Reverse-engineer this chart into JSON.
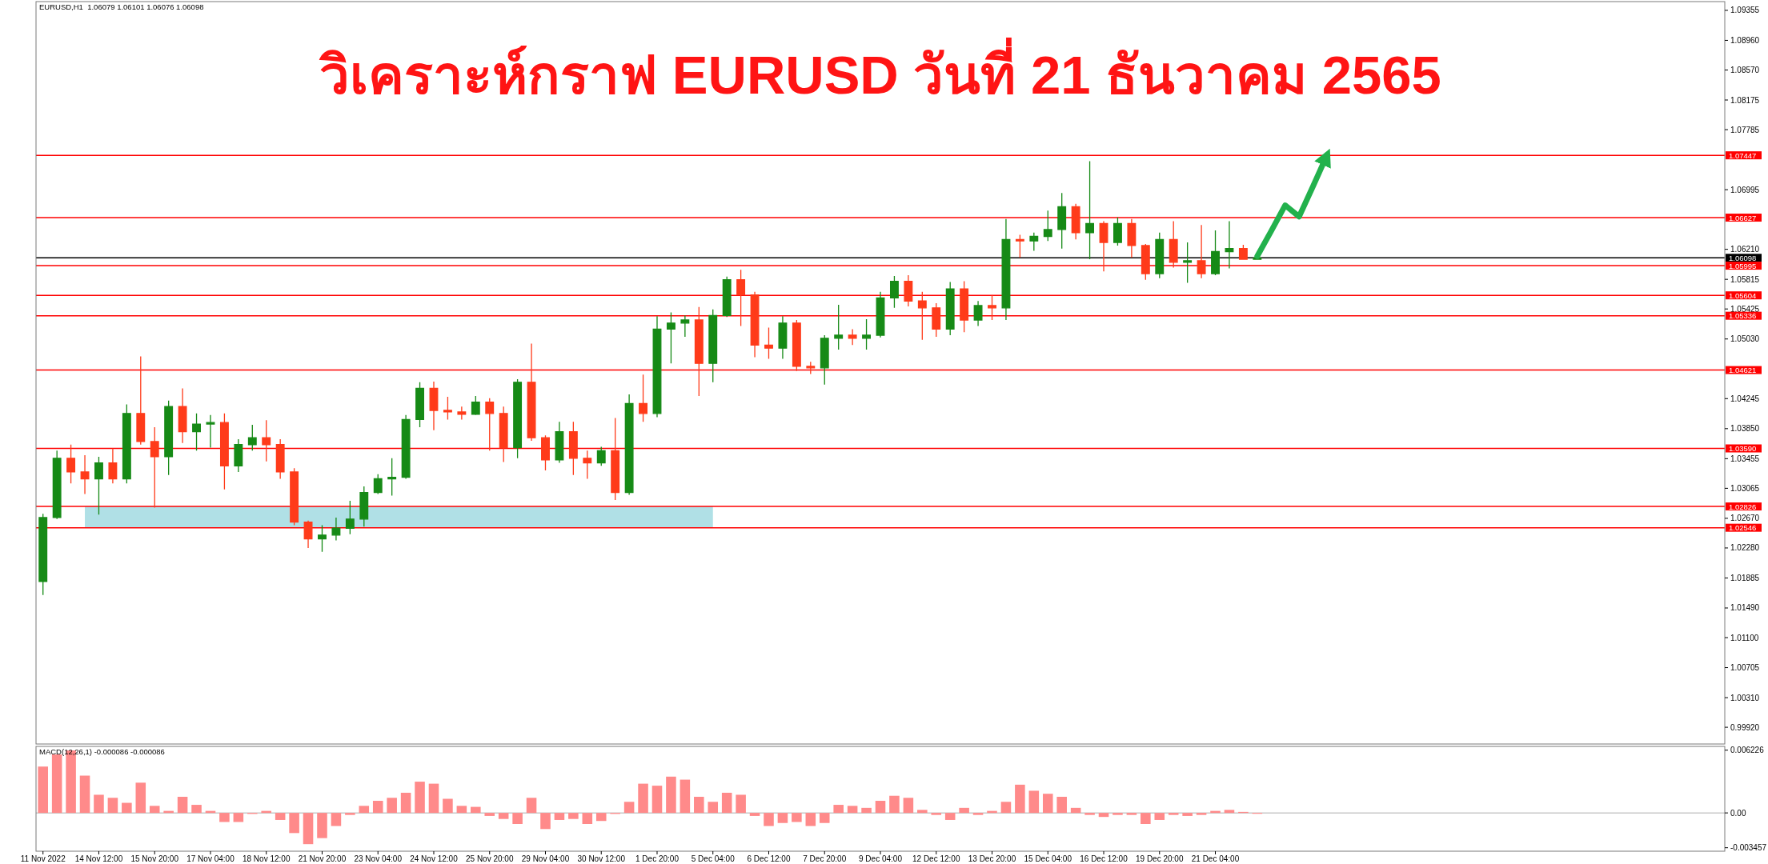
{
  "chart_data": [
    {
      "type": "candlestick",
      "title": "วิเคราะห์กราฟ EURUSD วันที่ 21 ธันวาคม 2565",
      "annotations": [
        "EURUSD,H1  1.06079 1.06101 1.06076 1.06098"
      ],
      "categories": [
        null,
        null,
        null,
        null,
        null,
        null,
        null,
        null,
        null,
        null,
        null,
        null,
        null,
        null,
        null,
        null,
        null,
        null,
        null,
        null,
        null,
        null,
        null,
        null,
        null,
        null,
        null,
        null,
        null,
        null,
        null,
        null,
        null,
        null,
        null,
        null,
        null,
        null,
        null,
        null,
        null,
        null,
        null,
        null,
        null,
        null,
        null,
        null,
        null,
        null,
        null,
        null,
        null,
        null,
        null,
        null,
        null,
        null,
        null,
        null,
        null,
        null,
        null,
        null,
        null,
        null,
        null,
        null,
        null,
        null,
        null,
        null,
        null,
        null,
        null,
        null,
        null,
        null,
        null,
        null,
        null,
        null,
        null,
        null,
        null,
        null,
        null,
        null,
        null,
        null,
        null,
        null,
        null,
        null,
        null,
        null,
        null,
        null,
        null,
        null,
        null,
        null,
        null,
        null,
        null,
        null,
        null,
        null,
        null,
        null,
        null,
        null,
        null,
        null,
        null,
        null,
        null,
        null,
        null,
        null,
        null
      ],
      "ohlc": [
        [
          1.0184,
          1.0273,
          1.0166,
          1.0268
        ],
        [
          1.0268,
          1.0356,
          1.0266,
          1.0346
        ],
        [
          1.0346,
          1.0364,
          1.0313,
          1.0328
        ],
        [
          1.0328,
          1.035,
          1.0299,
          1.0319
        ],
        [
          1.0319,
          1.0348,
          1.0272,
          1.034
        ],
        [
          1.034,
          1.0359,
          1.0313,
          1.0319
        ],
        [
          1.0319,
          1.0417,
          1.0313,
          1.0405
        ],
        [
          1.0405,
          1.048,
          1.0364,
          1.0368
        ],
        [
          1.0368,
          1.0387,
          1.0281,
          1.0348
        ],
        [
          1.0348,
          1.0422,
          1.0324,
          1.0414
        ],
        [
          1.0414,
          1.0438,
          1.0366,
          1.0381
        ],
        [
          1.0381,
          1.0405,
          1.0356,
          1.0391
        ],
        [
          1.0391,
          1.0403,
          1.036,
          1.0393
        ],
        [
          1.0393,
          1.0405,
          1.0305,
          1.0336
        ],
        [
          1.0336,
          1.0371,
          1.0328,
          1.0364
        ],
        [
          1.0364,
          1.039,
          1.0356,
          1.0373
        ],
        [
          1.0373,
          1.0396,
          1.0342,
          1.0364
        ],
        [
          1.0364,
          1.0371,
          1.0319,
          1.0328
        ],
        [
          1.0328,
          1.0333,
          1.0258,
          1.0262
        ],
        [
          1.0262,
          1.0264,
          1.0228,
          1.024
        ],
        [
          1.024,
          1.0258,
          1.0223,
          1.0245
        ],
        [
          1.0245,
          1.0268,
          1.0238,
          1.0254
        ],
        [
          1.0254,
          1.029,
          1.0246,
          1.0266
        ],
        [
          1.0266,
          1.0309,
          1.0256,
          1.0301
        ],
        [
          1.0301,
          1.0325,
          1.0299,
          1.0319
        ],
        [
          1.0319,
          1.0346,
          1.0297,
          1.0321
        ],
        [
          1.0321,
          1.0403,
          1.0319,
          1.0397
        ],
        [
          1.0397,
          1.0446,
          1.0387,
          1.0438
        ],
        [
          1.0438,
          1.0447,
          1.0383,
          1.0409
        ],
        [
          1.0409,
          1.0427,
          1.0397,
          1.0407
        ],
        [
          1.0407,
          1.0414,
          1.0397,
          1.0404
        ],
        [
          1.0404,
          1.0428,
          1.0403,
          1.042
        ],
        [
          1.042,
          1.0425,
          1.0356,
          1.0405
        ],
        [
          1.0405,
          1.0414,
          1.0341,
          1.036
        ],
        [
          1.036,
          1.045,
          1.0346,
          1.0446
        ],
        [
          1.0446,
          1.0497,
          1.0369,
          1.0373
        ],
        [
          1.0373,
          1.0376,
          1.033,
          1.0344
        ],
        [
          1.0344,
          1.0394,
          1.034,
          1.0381
        ],
        [
          1.0381,
          1.0394,
          1.0324,
          1.0346
        ],
        [
          1.0346,
          1.0356,
          1.0319,
          1.034
        ],
        [
          1.034,
          1.0361,
          1.0336,
          1.0356
        ],
        [
          1.0356,
          1.0399,
          1.0291,
          1.0301
        ],
        [
          1.0301,
          1.043,
          1.0298,
          1.0418
        ],
        [
          1.0418,
          1.0456,
          1.0394,
          1.0405
        ],
        [
          1.0405,
          1.0533,
          1.04,
          1.0516
        ],
        [
          1.0516,
          1.0538,
          1.0471,
          1.0524
        ],
        [
          1.0524,
          1.0534,
          1.0506,
          1.0528
        ],
        [
          1.0528,
          1.0545,
          1.0428,
          1.0471
        ],
        [
          1.0471,
          1.0542,
          1.0446,
          1.0534
        ],
        [
          1.0534,
          1.0585,
          1.0532,
          1.0581
        ],
        [
          1.0581,
          1.0594,
          1.052,
          1.0561
        ],
        [
          1.0561,
          1.0565,
          1.0479,
          1.0495
        ],
        [
          1.0495,
          1.0518,
          1.0477,
          1.0491
        ],
        [
          1.0491,
          1.0533,
          1.0477,
          1.0524
        ],
        [
          1.0524,
          1.0528,
          1.0461,
          1.0467
        ],
        [
          1.0467,
          1.0473,
          1.0457,
          1.0465
        ],
        [
          1.0465,
          1.0508,
          1.0443,
          1.0504
        ],
        [
          1.0504,
          1.0548,
          1.0489,
          1.0508
        ],
        [
          1.0508,
          1.0516,
          1.0495,
          1.0504
        ],
        [
          1.0504,
          1.0529,
          1.0489,
          1.0508
        ],
        [
          1.0508,
          1.0565,
          1.0505,
          1.0557
        ],
        [
          1.0557,
          1.0586,
          1.0544,
          1.0579
        ],
        [
          1.0579,
          1.0587,
          1.0546,
          1.0553
        ],
        [
          1.0553,
          1.0565,
          1.0502,
          1.0544
        ],
        [
          1.0544,
          1.055,
          1.0506,
          1.0516
        ],
        [
          1.0516,
          1.0578,
          1.0508,
          1.0569
        ],
        [
          1.0569,
          1.0579,
          1.0512,
          1.0528
        ],
        [
          1.0528,
          1.0553,
          1.052,
          1.0547
        ],
        [
          1.0547,
          1.0561,
          1.0528,
          1.0544
        ],
        [
          1.0544,
          1.0661,
          1.0528,
          1.0634
        ],
        [
          1.0634,
          1.064,
          1.061,
          1.0632
        ],
        [
          1.0632,
          1.0643,
          1.0619,
          1.0638
        ],
        [
          1.0638,
          1.0672,
          1.0632,
          1.0647
        ],
        [
          1.0647,
          1.0695,
          1.0622,
          1.0677
        ],
        [
          1.0677,
          1.0681,
          1.0634,
          1.0643
        ],
        [
          1.0643,
          1.0737,
          1.0608,
          1.0655
        ],
        [
          1.0655,
          1.0658,
          1.0592,
          1.063
        ],
        [
          1.063,
          1.0663,
          1.0626,
          1.0655
        ],
        [
          1.0655,
          1.0661,
          1.061,
          1.0626
        ],
        [
          1.0626,
          1.0628,
          1.0581,
          1.0589
        ],
        [
          1.0589,
          1.0643,
          1.0583,
          1.0634
        ],
        [
          1.0634,
          1.0658,
          1.0597,
          1.0604
        ],
        [
          1.0604,
          1.063,
          1.0577,
          1.0606
        ],
        [
          1.0606,
          1.0653,
          1.0583,
          1.0589
        ],
        [
          1.0589,
          1.0646,
          1.0587,
          1.0618
        ],
        [
          1.0618,
          1.0658,
          1.0596,
          1.0622
        ],
        [
          1.0622,
          1.0627,
          1.0608,
          1.0608
        ],
        [
          1.06079,
          1.06101,
          1.06076,
          1.06098
        ],
        null,
        null,
        null,
        null,
        null,
        null,
        null,
        null,
        null,
        null,
        null,
        null,
        null,
        null,
        null,
        null,
        null,
        null,
        null,
        null,
        null,
        null,
        null,
        null,
        null,
        null,
        null,
        null,
        null,
        null,
        null,
        null,
        null
      ],
      "colors": [
        "#168a16",
        "#168a16",
        "#ff3b1a",
        "#ff3b1a",
        "#168a16",
        "#ff3b1a",
        "#168a16",
        "#ff3b1a",
        "#ff3b1a",
        "#168a16",
        "#ff3b1a",
        "#168a16",
        "#168a16",
        "#ff3b1a",
        "#168a16",
        "#168a16",
        "#ff3b1a",
        "#ff3b1a",
        "#ff3b1a",
        "#ff3b1a",
        "#168a16",
        "#168a16",
        "#168a16",
        "#168a16",
        "#168a16",
        "#168a16",
        "#168a16",
        "#168a16",
        "#ff3b1a",
        "#ff3b1a",
        "#ff3b1a",
        "#168a16",
        "#ff3b1a",
        "#ff3b1a",
        "#168a16",
        "#ff3b1a",
        "#ff3b1a",
        "#168a16",
        "#ff3b1a",
        "#ff3b1a",
        "#168a16",
        "#ff3b1a",
        "#168a16",
        "#ff3b1a",
        "#168a16",
        "#168a16",
        "#168a16",
        "#ff3b1a",
        "#168a16",
        "#168a16",
        "#ff3b1a",
        "#ff3b1a",
        "#ff3b1a",
        "#168a16",
        "#ff3b1a",
        "#ff3b1a",
        "#168a16",
        "#168a16",
        "#ff3b1a",
        "#168a16",
        "#168a16",
        "#168a16",
        "#ff3b1a",
        "#ff3b1a",
        "#ff3b1a",
        "#168a16",
        "#ff3b1a",
        "#168a16",
        "#ff3b1a",
        "#168a16",
        "#ff3b1a",
        "#168a16",
        "#168a16",
        "#168a16",
        "#ff3b1a",
        "#168a16",
        "#ff3b1a",
        "#168a16",
        "#ff3b1a",
        "#ff3b1a",
        "#168a16",
        "#ff3b1a",
        "#168a16",
        "#ff3b1a",
        "#168a16",
        "#168a16",
        "#ff3b1a",
        "#168a16",
        null,
        null,
        null,
        null,
        null,
        null,
        null,
        null,
        null,
        null,
        null,
        null,
        null,
        null,
        null,
        null,
        null,
        null,
        null,
        null,
        null,
        null,
        null,
        null,
        null,
        null,
        null,
        null,
        null,
        null,
        null,
        null,
        null
      ],
      "series": [
        {
          "type": "line",
          "color": "#b0e0e6",
          "values": [
            null,
            null,
            null,
            null,
            null,
            null,
            null,
            null,
            null,
            null,
            null,
            null,
            null,
            null,
            null,
            null,
            null,
            null,
            null,
            null,
            null,
            null,
            null,
            null,
            null,
            null,
            null,
            null,
            null,
            null,
            null,
            null,
            null,
            null,
            null,
            null,
            null,
            null,
            null,
            null,
            null,
            null,
            null,
            null,
            null,
            null,
            null,
            null,
            null,
            null,
            null,
            null,
            null,
            null,
            null,
            null,
            null,
            null,
            null,
            null,
            null,
            null,
            null,
            null,
            null,
            null,
            null,
            null,
            null,
            null,
            null,
            null,
            null,
            null,
            null,
            null,
            null,
            null,
            null,
            null,
            null,
            null,
            null,
            null,
            null,
            null,
            null,
            null,
            null,
            null,
            null,
            null,
            null,
            null,
            null,
            null,
            null,
            null,
            null,
            null,
            null,
            null,
            null,
            null,
            null,
            null,
            null,
            null,
            null,
            null,
            null,
            null,
            null,
            null,
            null,
            null,
            null,
            null,
            null,
            null,
            null
          ],
          "lower": [
            null,
            null,
            null,
            1.02546,
            1.02546,
            1.02546,
            1.02546,
            1.02546,
            1.02546,
            1.02546,
            1.02546,
            1.02546,
            1.02546,
            1.02546,
            1.02546,
            1.02546,
            1.02546,
            1.02546,
            1.02546,
            1.02546,
            1.02546,
            1.02546,
            1.02546,
            1.02546,
            1.02546,
            1.02546,
            1.02546,
            1.02546,
            1.02546,
            1.02546,
            1.02546,
            1.02546,
            1.02546,
            1.02546,
            1.02546,
            1.02546,
            1.02546,
            1.02546,
            1.02546,
            1.02546,
            1.02546,
            1.02546,
            1.02546,
            1.02546,
            1.02546,
            1.02546,
            1.02546,
            1.02546,
            1.02546,
            null,
            null,
            null,
            null,
            null,
            null,
            null,
            null,
            null,
            null,
            null,
            null,
            null,
            null,
            null,
            null,
            null,
            null,
            null,
            null,
            null,
            null,
            null,
            null,
            null,
            null,
            null,
            null,
            null,
            null,
            null,
            null,
            null,
            null,
            null,
            null,
            null,
            null,
            null,
            null,
            null,
            null,
            null,
            null,
            null,
            null,
            null,
            null,
            null,
            null,
            null,
            null,
            null,
            null,
            null,
            null,
            null,
            null,
            null,
            null,
            null,
            null,
            null,
            null,
            null,
            null,
            null,
            null,
            null,
            null,
            null,
            null
          ],
          "upper": [
            null,
            null,
            null,
            1.02826,
            1.02826,
            1.02826,
            1.02826,
            1.02826,
            1.02826,
            1.02826,
            1.02826,
            1.02826,
            1.02826,
            1.02826,
            1.02826,
            1.02826,
            1.02826,
            1.02826,
            1.02826,
            1.02826,
            1.02826,
            1.02826,
            1.02826,
            1.02826,
            1.02826,
            1.02826,
            1.02826,
            1.02826,
            1.02826,
            1.02826,
            1.02826,
            1.02826,
            1.02826,
            1.02826,
            1.02826,
            1.02826,
            1.02826,
            1.02826,
            1.02826,
            1.02826,
            1.02826,
            1.02826,
            1.02826,
            1.02826,
            1.02826,
            1.02826,
            1.02826,
            1.02826,
            1.02826,
            null,
            null,
            null,
            null,
            null,
            null,
            null,
            null,
            null,
            null,
            null,
            null,
            null,
            null,
            null,
            null,
            null,
            null,
            null,
            null,
            null,
            null,
            null,
            null,
            null,
            null,
            null,
            null,
            null,
            null,
            null,
            null,
            null,
            null,
            null,
            null,
            null,
            null,
            null,
            null,
            null,
            null,
            null,
            null,
            null,
            null,
            null,
            null,
            null,
            null,
            null,
            null,
            null,
            null,
            null,
            null,
            null,
            null,
            null,
            null,
            null,
            null,
            null,
            null,
            null,
            null,
            null,
            null,
            null,
            null,
            null,
            null
          ]
        },
        {
          "type": "line",
          "color": "#22b14c",
          "values": [
            null,
            null,
            null,
            null,
            null,
            null,
            null,
            null,
            null,
            null,
            null,
            null,
            null,
            null,
            null,
            null,
            null,
            null,
            null,
            null,
            null,
            null,
            null,
            null,
            null,
            null,
            null,
            null,
            null,
            null,
            null,
            null,
            null,
            null,
            null,
            null,
            null,
            null,
            null,
            null,
            null,
            null,
            null,
            null,
            null,
            null,
            null,
            null,
            null,
            null,
            null,
            null,
            null,
            null,
            null,
            null,
            null,
            null,
            null,
            null,
            null,
            null,
            null,
            null,
            null,
            null,
            null,
            null,
            null,
            null,
            null,
            null,
            null,
            null,
            null,
            null,
            null,
            null,
            null,
            null,
            null,
            null,
            null,
            null,
            null,
            null,
            null,
            1.0612,
            1.0645,
            1.0679,
            1.0664,
            1.0704,
            1.0745,
            null,
            null,
            null,
            null,
            null,
            null,
            null,
            null,
            null,
            null,
            null,
            null,
            null,
            null,
            null,
            null,
            null,
            null,
            null,
            null,
            null,
            null,
            null,
            null,
            null,
            null,
            null,
            null
          ]
        }
      ],
      "ylim": [
        0.997,
        1.0947
      ],
      "yticks": [
        1.09355,
        {
          "value": 1.0896,
          "label": "1.08960"
        },
        {
          "value": 1.0857,
          "label": "1.08570"
        },
        1.08175,
        1.07785,
        1.06995,
        {
          "value": 1.0621,
          "label": "1.06210"
        },
        1.05815,
        1.05425,
        {
          "value": 1.0503,
          "label": "1.05030"
        },
        1.04245,
        {
          "value": 1.0385,
          "label": "1.03850"
        },
        1.03455,
        1.03065,
        {
          "value": 1.0267,
          "label": "1.02670"
        },
        {
          "value": 1.0228,
          "label": "1.02280"
        },
        1.01885,
        {
          "value": 1.0149,
          "label": "1.01490"
        },
        {
          "value": 1.011,
          "label": "1.01100"
        },
        1.00705,
        {
          "value": 1.0031,
          "label": "1.00310"
        },
        {
          "value": 0.9992,
          "label": "0.99920"
        }
      ],
      "ref_lines": [
        {
          "axis": "y",
          "value": 1.07447,
          "label": "1.07447",
          "color": "#ff0000"
        },
        {
          "axis": "y",
          "value": 1.06627,
          "label": "1.06627",
          "color": "#ff0000"
        },
        {
          "axis": "y",
          "value": 1.06098,
          "label": "1.06098",
          "color": "#000000"
        },
        {
          "axis": "y",
          "value": 1.05995,
          "label": "1.05995",
          "color": "#ff0000"
        },
        {
          "axis": "y",
          "value": 1.05604,
          "label": "1.05604",
          "color": "#ff0000"
        },
        {
          "axis": "y",
          "value": 1.05336,
          "label": "1.05336",
          "color": "#ff0000"
        },
        {
          "axis": "y",
          "value": 1.04621,
          "label": "1.04621",
          "color": "#ff0000"
        },
        {
          "axis": "y",
          "value": 1.0359,
          "label": "1.03590",
          "color": "#ff0000"
        },
        {
          "axis": "y",
          "value": 1.02826,
          "label": "1.02826",
          "color": "#ff0000"
        },
        {
          "axis": "y",
          "value": 1.02546,
          "label": "1.02546",
          "color": "#ff0000"
        }
      ]
    },
    {
      "type": "bar",
      "title": "MACD(12,26,1) -0.000086 -0.000086",
      "categories": [
        "11 Nov 2022",
        null,
        null,
        null,
        "14 Nov 12:00",
        null,
        null,
        null,
        "15 Nov 20:00",
        null,
        null,
        null,
        "17 Nov 04:00",
        null,
        null,
        null,
        "18 Nov 12:00",
        null,
        null,
        null,
        "21 Nov 20:00",
        null,
        null,
        null,
        "23 Nov 04:00",
        null,
        null,
        null,
        "24 Nov 12:00",
        null,
        null,
        null,
        "25 Nov 20:00",
        null,
        null,
        null,
        "29 Nov 04:00",
        null,
        null,
        null,
        "30 Nov 12:00",
        null,
        null,
        null,
        "1 Dec 20:00",
        null,
        null,
        null,
        "5 Dec 04:00",
        null,
        null,
        null,
        "6 Dec 12:00",
        null,
        null,
        null,
        "7 Dec 20:00",
        null,
        null,
        null,
        "9 Dec 04:00",
        null,
        null,
        null,
        "12 Dec 12:00",
        null,
        null,
        null,
        "13 Dec 20:00",
        null,
        null,
        null,
        "15 Dec 04:00",
        null,
        null,
        null,
        "16 Dec 12:00",
        null,
        null,
        null,
        "19 Dec 20:00",
        null,
        null,
        null,
        "21 Dec 04:00",
        null,
        null,
        null,
        null,
        null,
        null,
        null,
        null,
        null,
        null,
        null,
        null,
        null,
        null,
        null,
        null,
        null,
        null,
        null,
        null,
        null,
        null,
        null,
        null,
        null,
        null,
        null,
        null,
        null,
        null,
        null,
        null,
        null,
        null,
        null,
        null
      ],
      "values": [
        0.0046,
        0.0058,
        0.0062,
        0.0037,
        0.0018,
        0.0015,
        0.001,
        0.003,
        0.0007,
        0.0002,
        0.0016,
        0.0008,
        0.0002,
        -0.0009,
        -0.0009,
        -0.0001,
        0.0002,
        -0.0007,
        -0.002,
        -0.0031,
        -0.0025,
        -0.0013,
        -0.0002,
        0.0007,
        0.0012,
        0.0015,
        0.002,
        0.0031,
        0.0029,
        0.0014,
        0.0007,
        0.0006,
        -0.0003,
        -0.0006,
        -0.0011,
        0.0015,
        -0.0016,
        -0.0007,
        -0.0006,
        -0.0011,
        -0.0008,
        -0.0001,
        0.0011,
        0.0029,
        0.0027,
        0.0036,
        0.0033,
        0.0016,
        0.0011,
        0.002,
        0.0018,
        -0.0003,
        -0.0013,
        -0.001,
        -0.0009,
        -0.0013,
        -0.001,
        0.0008,
        0.0007,
        0.0005,
        0.0012,
        0.0017,
        0.0015,
        0.0003,
        -0.0002,
        -0.0007,
        0.0005,
        -0.0002,
        0.0002,
        0.0011,
        0.0028,
        0.0022,
        0.0019,
        0.0016,
        0.0005,
        -0.0002,
        -0.0004,
        -0.0002,
        -0.0002,
        -0.0011,
        -0.0007,
        -0.0002,
        -0.0003,
        -0.0002,
        0.0002,
        0.0003,
        0.0001,
        -8.6e-05,
        null,
        null,
        null,
        null,
        null,
        null,
        null,
        null,
        null,
        null,
        null,
        null,
        null,
        null,
        null,
        null,
        null,
        null,
        null,
        null,
        null,
        null,
        null,
        null,
        null,
        null,
        null,
        null,
        null,
        null,
        null,
        null,
        null
      ],
      "color": "#ff8a8a",
      "ylim": [
        -0.0038,
        0.0066
      ],
      "yticks": [
        0.006226,
        {
          "value": 0,
          "label": "0.00"
        },
        -0.003457
      ],
      "ref_lines": [
        {
          "axis": "y",
          "value": 0,
          "color": "#c8c8c8"
        }
      ]
    }
  ]
}
